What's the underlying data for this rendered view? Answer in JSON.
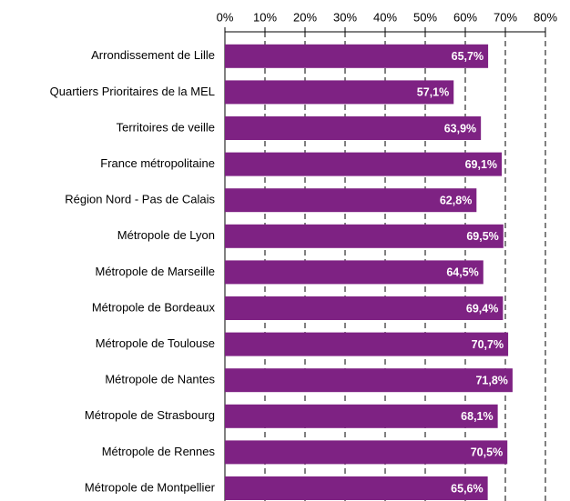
{
  "chart_data": {
    "type": "bar",
    "orientation": "horizontal",
    "categories": [
      "Arrondissement de Lille",
      "Quartiers Prioritaires de la MEL",
      "Territoires de veille",
      "France métropolitaine",
      "Région Nord - Pas de Calais",
      "Métropole de Lyon",
      "Métropole de Marseille",
      "Métropole de Bordeaux",
      "Métropole de Toulouse",
      "Métropole de Nantes",
      "Métropole de Strasbourg",
      "Métropole de Rennes",
      "Métropole de Montpellier"
    ],
    "values": [
      65.7,
      57.1,
      63.9,
      69.1,
      62.8,
      69.5,
      64.5,
      69.4,
      70.7,
      71.8,
      68.1,
      70.5,
      65.6
    ],
    "value_labels": [
      "65,7%",
      "57,1%",
      "63,9%",
      "69,1%",
      "62,8%",
      "69,5%",
      "64,5%",
      "69,4%",
      "70,7%",
      "71,8%",
      "68,1%",
      "70,5%",
      "65,6%"
    ],
    "color": "#7e2283",
    "xlim": [
      0,
      80
    ],
    "xticks": [
      {
        "value": 0,
        "label": "0%"
      },
      {
        "value": 10,
        "label": "10%"
      },
      {
        "value": 20,
        "label": "20%"
      },
      {
        "value": 30,
        "label": "30%"
      },
      {
        "value": 40,
        "label": "40%"
      },
      {
        "value": 50,
        "label": "50%"
      },
      {
        "value": 60,
        "label": "60%"
      },
      {
        "value": 70,
        "label": "70%"
      },
      {
        "value": 80,
        "label": "80%"
      }
    ],
    "grid": true
  }
}
